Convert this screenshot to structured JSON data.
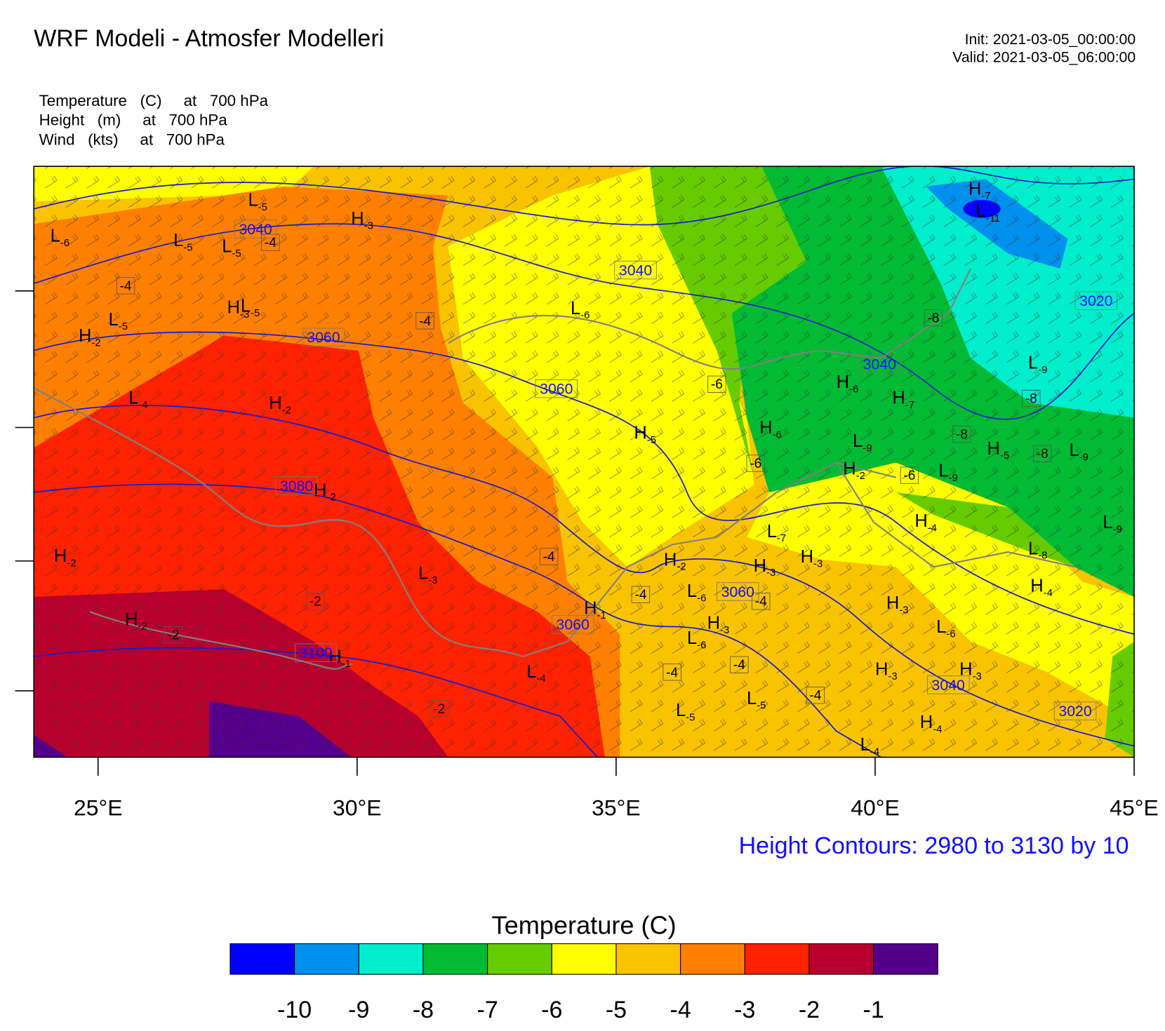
{
  "header": {
    "title": "WRF Modeli - Atmosfer Modelleri",
    "init": "Init: 2021-03-05_00:00:00",
    "valid": "Valid: 2021-03-05_06:00:00"
  },
  "fields": [
    "Temperature   (C)     at   700 hPa",
    "Height   (m)     at   700 hPa",
    "Wind   (kts)     at   700 hPa"
  ],
  "map": {
    "lonlim": [
      23.76,
      45
    ],
    "lonticks": [
      {
        "value": 25,
        "label": "25°E"
      },
      {
        "value": 30,
        "label": "30°E"
      },
      {
        "value": 35,
        "label": "35°E"
      },
      {
        "value": 40,
        "label": "40°E"
      },
      {
        "value": 45,
        "label": "45°E"
      }
    ],
    "contour_note": "Height Contours: 2980 to 3130 by 10",
    "markers": [
      {
        "symbol": "L",
        "value": -5
      },
      {
        "symbol": "L",
        "value": -6
      },
      {
        "symbol": "L",
        "value": -5
      },
      {
        "symbol": "L",
        "value": -5
      },
      {
        "symbol": "H",
        "value": -3
      },
      {
        "symbol": "H",
        "value": -3
      },
      {
        "symbol": "L",
        "value": -5
      },
      {
        "symbol": "L",
        "value": -5
      },
      {
        "symbol": "H",
        "value": -2
      },
      {
        "symbol": "L",
        "value": -4
      },
      {
        "symbol": "H",
        "value": -2
      },
      {
        "symbol": "L",
        "value": -6
      },
      {
        "symbol": "H",
        "value": -5
      },
      {
        "symbol": "H",
        "value": -6
      },
      {
        "symbol": "H",
        "value": -6
      },
      {
        "symbol": "H",
        "value": -7
      },
      {
        "symbol": "L",
        "value": -9
      },
      {
        "symbol": "H",
        "value": -2
      },
      {
        "symbol": "L",
        "value": -9
      },
      {
        "symbol": "H",
        "value": -5
      },
      {
        "symbol": "L",
        "value": -9
      },
      {
        "symbol": "L",
        "value": -9
      },
      {
        "symbol": "H",
        "value": -7
      },
      {
        "symbol": "L",
        "value": -11
      },
      {
        "symbol": "H",
        "value": -2
      },
      {
        "symbol": "L",
        "value": -7
      },
      {
        "symbol": "H",
        "value": -4
      },
      {
        "symbol": "H",
        "value": -2
      },
      {
        "symbol": "H",
        "value": -3
      },
      {
        "symbol": "H",
        "value": -3
      },
      {
        "symbol": "L",
        "value": -3
      },
      {
        "symbol": "L",
        "value": -6
      },
      {
        "symbol": "H",
        "value": -1
      },
      {
        "symbol": "H",
        "value": -3
      },
      {
        "symbol": "L",
        "value": -6
      },
      {
        "symbol": "H",
        "value": -2
      },
      {
        "symbol": "H",
        "value": -1
      },
      {
        "symbol": "L",
        "value": -4
      },
      {
        "symbol": "H",
        "value": -3
      },
      {
        "symbol": "L",
        "value": -6
      },
      {
        "symbol": "L",
        "value": -8
      },
      {
        "symbol": "H",
        "value": -4
      },
      {
        "symbol": "L",
        "value": -9
      },
      {
        "symbol": "H",
        "value": -3
      },
      {
        "symbol": "H",
        "value": -3
      },
      {
        "symbol": "L",
        "value": -5
      },
      {
        "symbol": "L",
        "value": -5
      },
      {
        "symbol": "H",
        "value": -4
      },
      {
        "symbol": "L",
        "value": -4
      },
      {
        "symbol": "H",
        "value": -2
      }
    ],
    "contour_labels": [
      3040,
      3040,
      3020,
      3060,
      3060,
      3040,
      3080,
      3060,
      3060,
      3100,
      3040,
      3020
    ],
    "temperature_labels": [
      -4,
      -4,
      -4,
      -8,
      -6,
      -8,
      -8,
      -8,
      -6,
      -6,
      -4,
      -2,
      -4,
      -4,
      -2,
      -4,
      -4,
      -4,
      -2
    ]
  },
  "colorbar": {
    "title": "Temperature  (C)",
    "colors": [
      "#0000ff",
      "#0090ee",
      "#00eecc",
      "#00bb33",
      "#66cc00",
      "#ffff00",
      "#f9c300",
      "#ff8000",
      "#ff2200",
      "#b8002e",
      "#55008c"
    ],
    "labels": [
      -10,
      -9,
      -8,
      -7,
      -6,
      -5,
      -4,
      -3,
      -2,
      -1
    ]
  }
}
